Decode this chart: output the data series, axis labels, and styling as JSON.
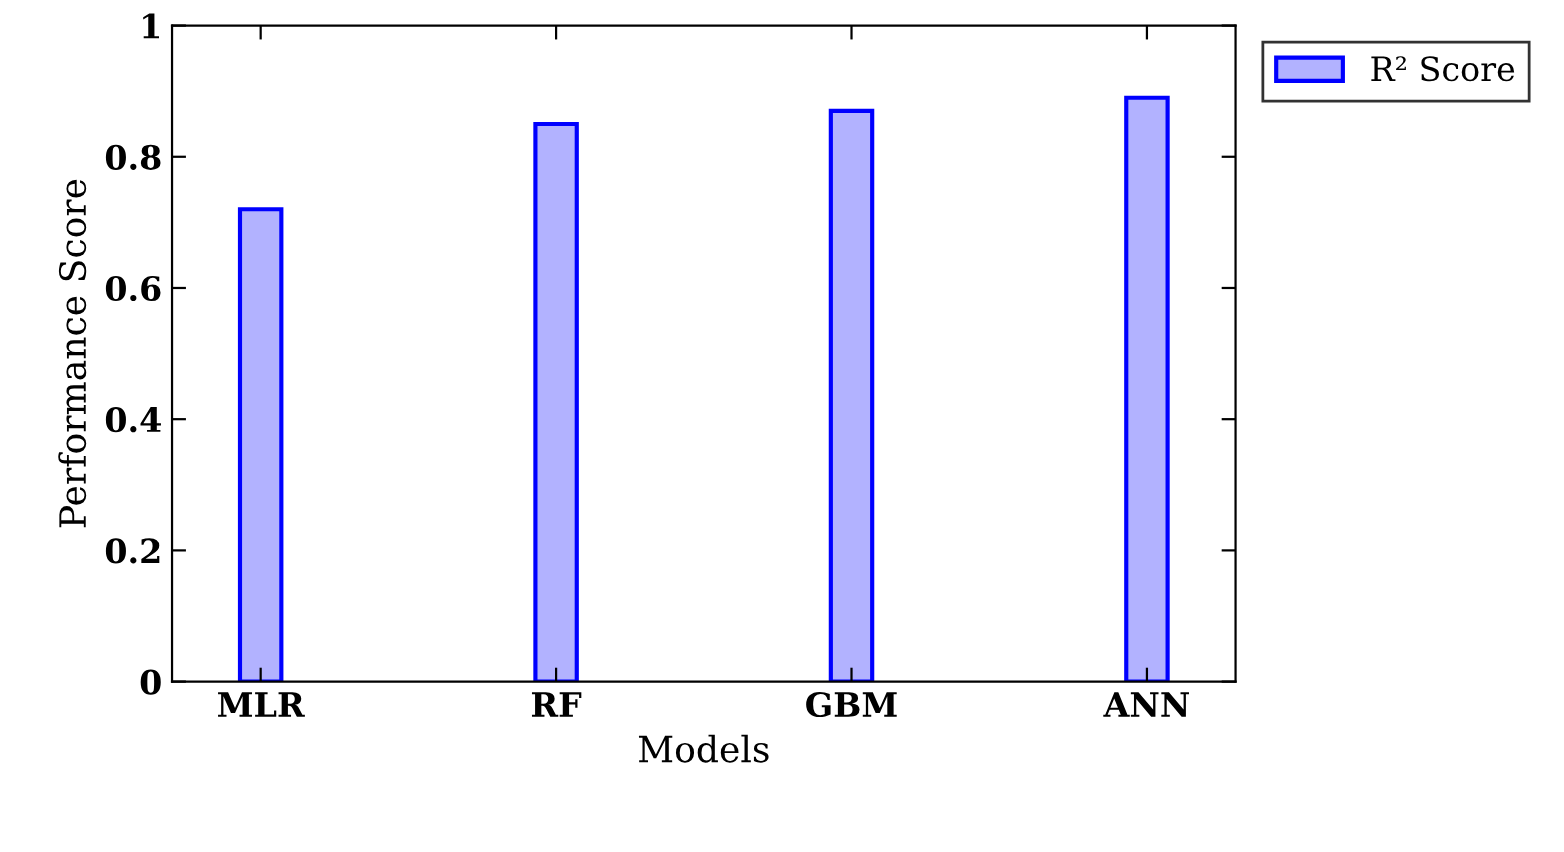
{
  "chart_data": {
    "type": "bar",
    "xlabel": "Models",
    "ylabel": "Performance Score",
    "categories": [
      "MLR",
      "RF",
      "GBM",
      "ANN"
    ],
    "series": [
      {
        "name": "R² Score",
        "color": "#0000ff",
        "values": [
          0.72,
          0.85,
          0.87,
          0.89
        ]
      }
    ],
    "ylim": [
      0,
      1
    ],
    "yticks": [
      0,
      0.2,
      0.4,
      0.6,
      0.8,
      1
    ],
    "grid": false,
    "legend": "top right"
  }
}
